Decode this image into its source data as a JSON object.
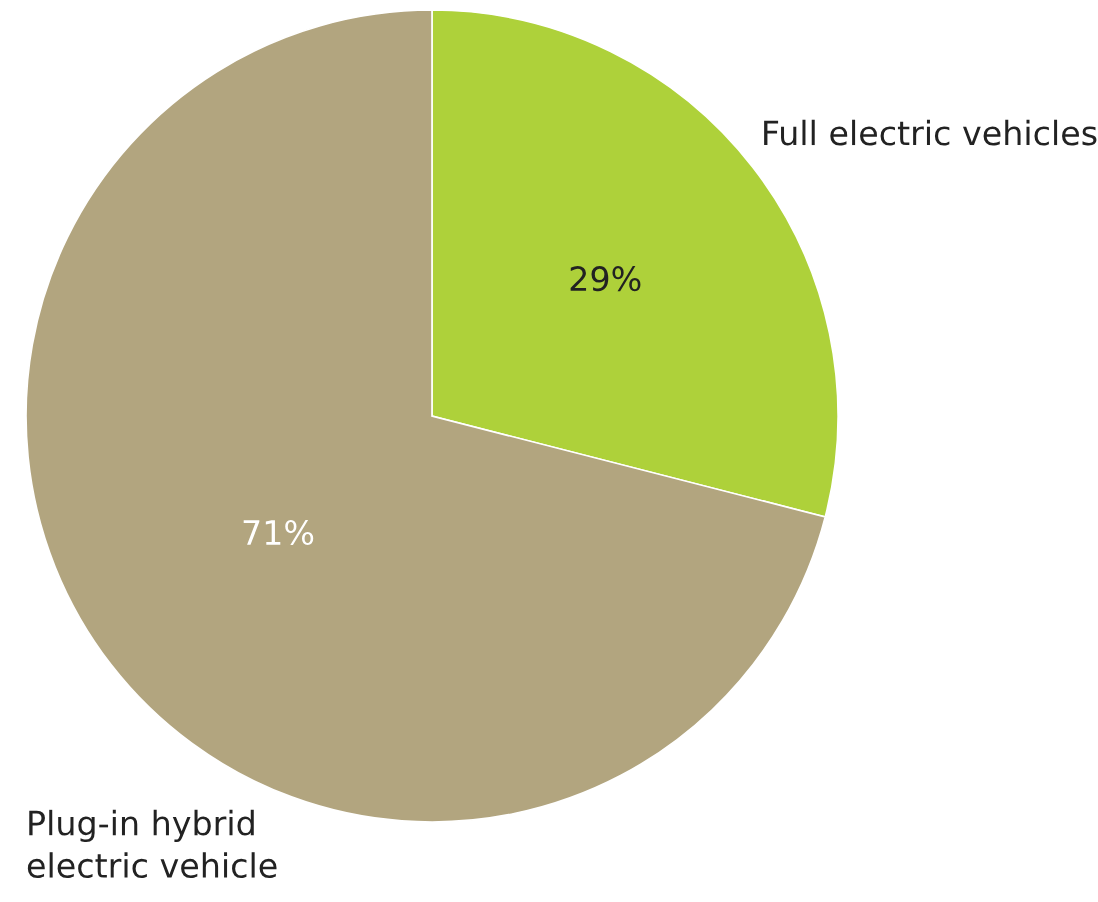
{
  "chart_data": {
    "type": "pie",
    "categories": [
      "Full electric vehicles",
      "Plug-in hybrid\nelectric vehicle"
    ],
    "values": [
      29,
      71
    ],
    "colors": [
      "#aed13a",
      "#b2a57f"
    ],
    "value_labels": [
      "29%",
      "71%"
    ],
    "legend": false
  }
}
